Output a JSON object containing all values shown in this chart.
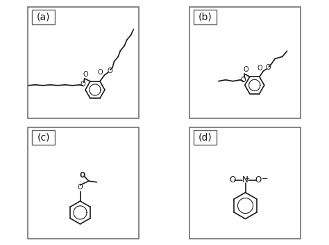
{
  "panels": [
    "(a)",
    "(b)",
    "(c)",
    "(d)"
  ],
  "panel_label_fontsize": 10,
  "line_color": "#1a1a1a",
  "line_width": 1.2,
  "background": "#ffffff",
  "text_fontsize": 7.0,
  "border_color": "#666666",
  "label_box_color": "#aaaaaa"
}
